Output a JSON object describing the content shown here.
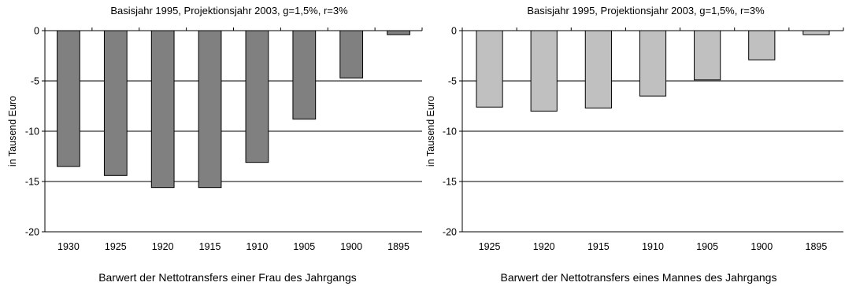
{
  "chart_data": [
    {
      "type": "bar",
      "title": "Basisjahr 1995, Projektionsjahr 2003, g=1,5%, r=3%",
      "xlabel": "Barwert der Nettotransfers einer Frau des Jahrgangs",
      "ylabel": "in Tausend Euro",
      "categories": [
        "1930",
        "1925",
        "1920",
        "1915",
        "1910",
        "1905",
        "1900",
        "1895"
      ],
      "values": [
        -13.5,
        -14.4,
        -15.6,
        -15.6,
        -13.1,
        -8.8,
        -4.7,
        -0.4
      ],
      "ylim": [
        -20,
        0
      ],
      "yticks": [
        0,
        -5,
        -10,
        -15,
        -20
      ],
      "bar_color": "#808080",
      "grid": true
    },
    {
      "type": "bar",
      "title": "Basisjahr 1995, Projektionsjahr 2003, g=1,5%, r=3%",
      "xlabel": "Barwert der Nettotransfers eines Mannes des Jahrgangs",
      "ylabel": "in Tausend Euro",
      "categories": [
        "1925",
        "1920",
        "1915",
        "1910",
        "1905",
        "1900",
        "1895"
      ],
      "values": [
        -7.6,
        -8.0,
        -7.7,
        -6.5,
        -4.9,
        -2.9,
        -0.4
      ],
      "ylim": [
        -20,
        0
      ],
      "yticks": [
        0,
        -5,
        -10,
        -15,
        -20
      ],
      "bar_color": "#c0c0c0",
      "grid": true
    }
  ]
}
